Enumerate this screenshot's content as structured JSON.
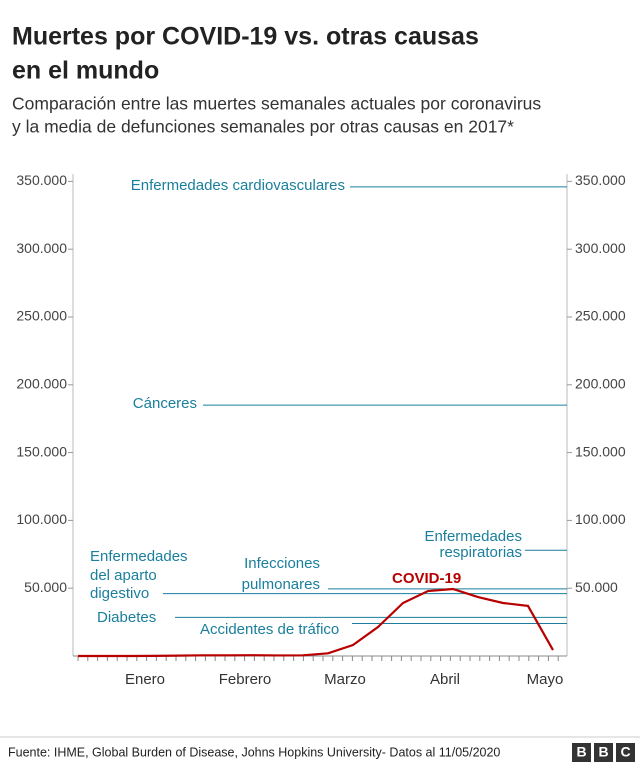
{
  "chart_data": {
    "type": "line",
    "title": [
      "Muertes por COVID-19 vs. otras causas",
      "en el mundo"
    ],
    "subtitle": [
      "Comparación entre las muertes semanales actuales por coronavirus",
      "y la media de defunciones semanales por otras causas en 2017*"
    ],
    "categories": [
      null,
      null,
      null,
      "Enero",
      null,
      null,
      null,
      "Febrero",
      null,
      null,
      null,
      "Marzo",
      null,
      null,
      null,
      "Abril",
      null,
      null,
      null,
      "Mayo"
    ],
    "series": [
      {
        "name": "COVID-19",
        "color": "#b80000",
        "values": [
          0,
          0,
          10,
          100,
          300,
          500,
          500,
          600,
          400,
          500,
          2000,
          8100,
          21400,
          39100,
          47900,
          49400,
          43500,
          39100,
          36900,
          4400
        ]
      }
    ],
    "reference_lines": [
      {
        "label": [
          "Enfermedades cardiovasculares"
        ],
        "value": 346000,
        "color": "#1a7f9c"
      },
      {
        "label": [
          "Cánceres"
        ],
        "value": 185000,
        "color": "#1a7f9c"
      },
      {
        "label": [
          "Enfermedades",
          "respiratorias"
        ],
        "value": 78000,
        "color": "#1a7f9c"
      },
      {
        "label": [
          "Infecciones",
          "pulmonares"
        ],
        "value": 49500,
        "color": "#1a7f9c"
      },
      {
        "label": [
          "Enfermedades",
          "del aparto",
          "digestivo"
        ],
        "value": 46000,
        "color": "#1a7f9c"
      },
      {
        "label": [
          "Diabetes"
        ],
        "value": 28500,
        "color": "#1a7f9c"
      },
      {
        "label": [
          "Accidentes de tráfico"
        ],
        "value": 24000,
        "color": "#1a7f9c"
      }
    ],
    "ylim": [
      0,
      350000
    ],
    "yticks": [
      {
        "value": 50000,
        "label": "50.000"
      },
      {
        "value": 100000,
        "label": "100.000"
      },
      {
        "value": 150000,
        "label": "150.000"
      },
      {
        "value": 200000,
        "label": "200.000"
      },
      {
        "value": 250000,
        "label": "250.000"
      },
      {
        "value": 300000,
        "label": "300.000"
      },
      {
        "value": 350000,
        "label": "350.000"
      }
    ],
    "grid": false,
    "source": "Fuente: IHME, Global Burden of Disease, Johns Hopkins University- Datos al 11/05/2020",
    "logo": [
      "B",
      "B",
      "C"
    ]
  }
}
